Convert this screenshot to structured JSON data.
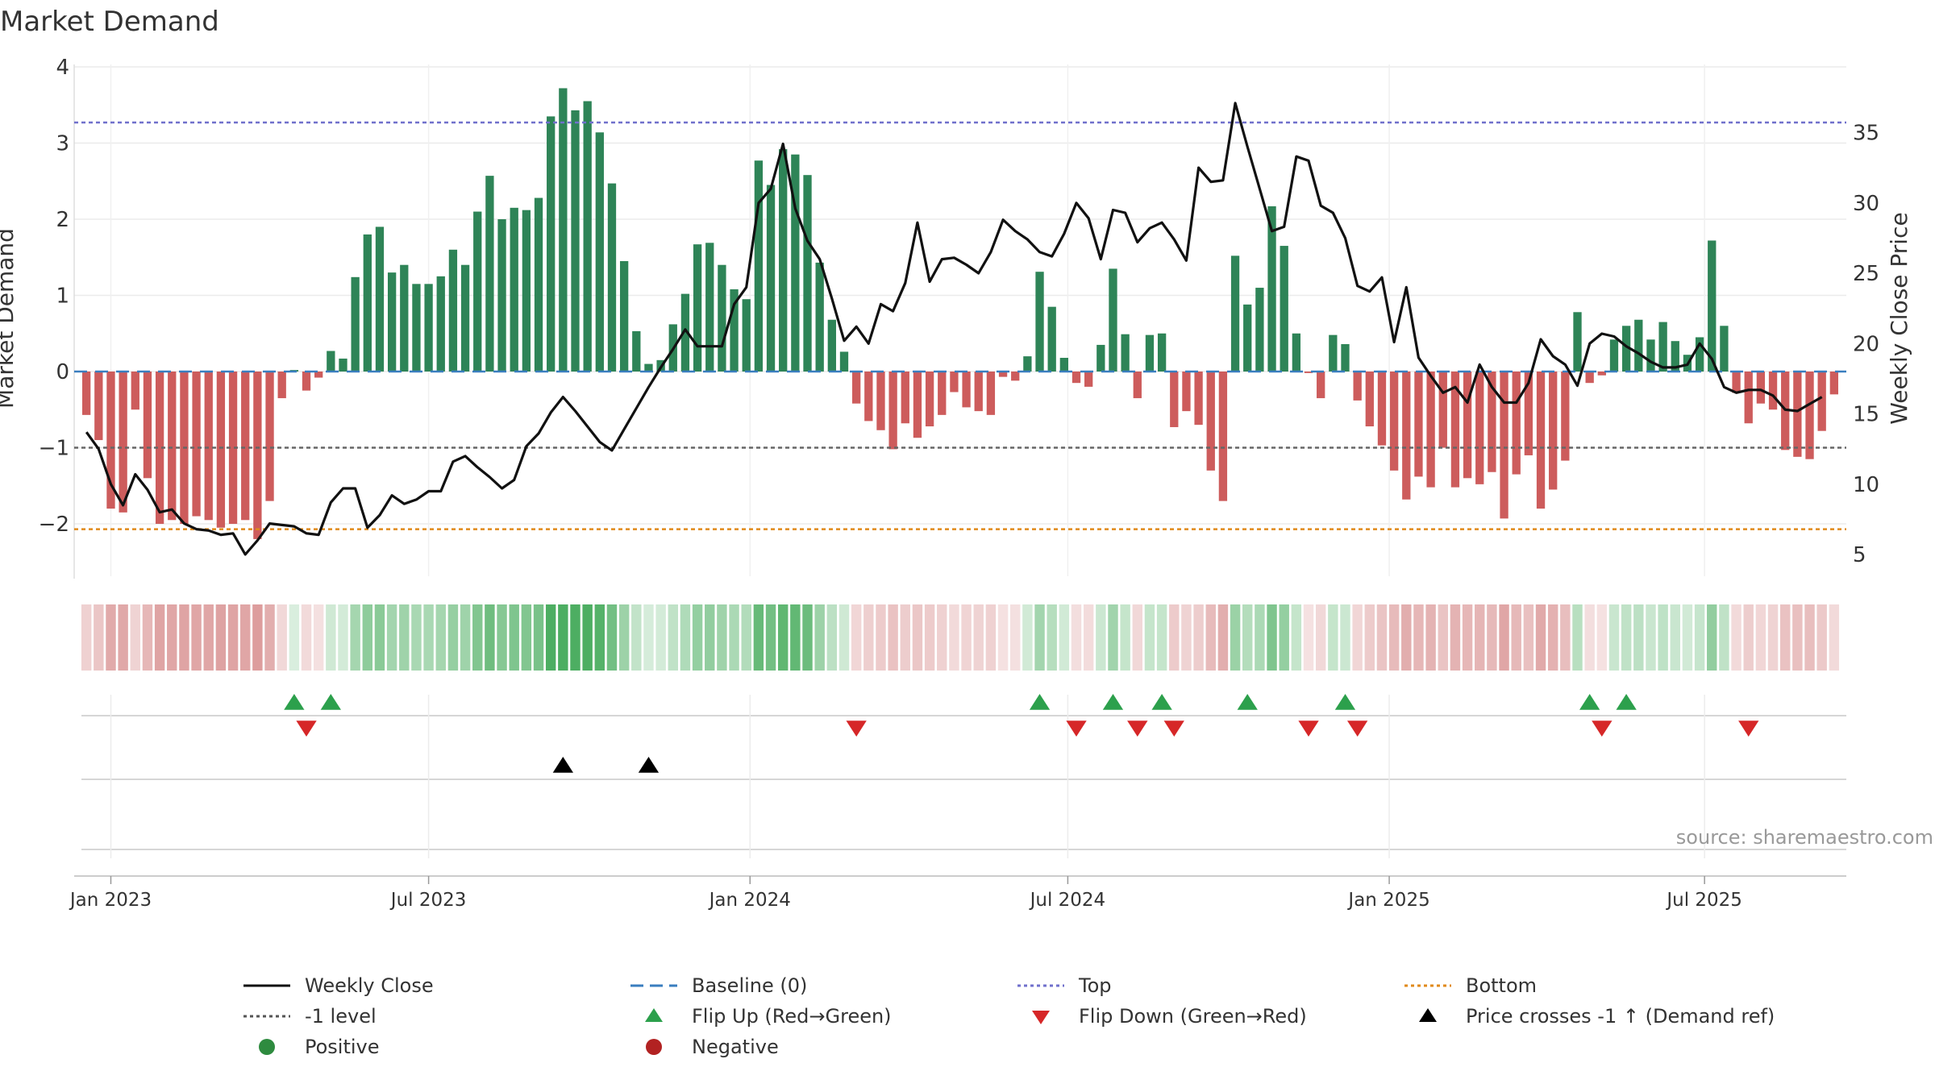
{
  "chart_data": {
    "type": "bar",
    "title": "Market Demand",
    "ylabel": "Market Demand",
    "y2label": "Weekly Close Price",
    "ylim": [
      -2.7,
      4.0
    ],
    "y2lim": [
      3.5,
      39.0
    ],
    "yticks": [
      4,
      3,
      2,
      1,
      0,
      -1,
      -2
    ],
    "yticklabels": [
      "4",
      "3",
      "2",
      "1",
      "0",
      "−1",
      "−2"
    ],
    "y2ticks": [
      35,
      30,
      25,
      20,
      15,
      10,
      5
    ],
    "x_start_month": "2023-01",
    "x_range_weeks": [
      -1,
      144
    ],
    "xticks": [
      {
        "label": "Jan 2023",
        "week": 2.0
      },
      {
        "label": "Jul 2023",
        "week": 28.0
      },
      {
        "label": "Jan 2024",
        "week": 54.3
      },
      {
        "label": "Jul 2024",
        "week": 80.3
      },
      {
        "label": "Jan 2025",
        "week": 106.6
      },
      {
        "label": "Jul 2025",
        "week": 132.4
      }
    ],
    "reference_lines": {
      "top": 3.27,
      "bottom": -2.07,
      "minus_one": -1,
      "baseline": 0
    },
    "demand": [
      -0.57,
      -0.9,
      -1.8,
      -1.85,
      -0.5,
      -1.4,
      -2.0,
      -1.95,
      -2.0,
      -1.9,
      -1.95,
      -2.05,
      -2.0,
      -1.95,
      -2.2,
      -1.7,
      -0.35,
      0.02,
      -0.25,
      -0.08,
      0.27,
      0.17,
      1.24,
      1.8,
      1.9,
      1.3,
      1.4,
      1.15,
      1.15,
      1.25,
      1.6,
      1.4,
      2.1,
      2.57,
      2.0,
      2.15,
      2.12,
      2.28,
      3.35,
      3.72,
      3.43,
      3.55,
      3.14,
      2.47,
      1.45,
      0.53,
      0.1,
      0.15,
      0.62,
      1.02,
      1.67,
      1.69,
      1.4,
      1.08,
      0.95,
      2.77,
      2.45,
      2.92,
      2.85,
      2.58,
      1.43,
      0.68,
      0.26,
      -0.42,
      -0.65,
      -0.77,
      -1.02,
      -0.68,
      -0.87,
      -0.72,
      -0.57,
      -0.27,
      -0.47,
      -0.52,
      -0.57,
      -0.07,
      -0.12,
      0.2,
      1.31,
      0.85,
      0.18,
      -0.15,
      -0.2,
      0.35,
      1.35,
      0.49,
      -0.35,
      0.48,
      0.5,
      -0.73,
      -0.52,
      -0.7,
      -1.3,
      -1.7,
      1.52,
      0.88,
      1.1,
      2.17,
      1.65,
      0.5,
      -0.02,
      -0.35,
      0.48,
      0.36,
      -0.38,
      -0.72,
      -0.97,
      -1.3,
      -1.68,
      -1.38,
      -1.52,
      -1.0,
      -1.52,
      -1.4,
      -1.48,
      -1.32,
      -1.93,
      -1.35,
      -1.1,
      -1.8,
      -1.55,
      -1.17,
      0.78,
      -0.15,
      -0.05,
      0.42,
      0.6,
      0.68,
      0.42,
      0.65,
      0.4,
      0.22,
      0.45,
      1.72,
      0.6,
      -0.28,
      -0.68,
      -0.42,
      -0.5,
      -1.03,
      -1.12,
      -1.15,
      -0.78,
      -0.3
    ],
    "price": [
      13.7,
      12.5,
      10.0,
      8.5,
      10.7,
      9.6,
      8.0,
      8.2,
      7.2,
      6.8,
      6.7,
      6.4,
      6.5,
      5.0,
      6.0,
      7.2,
      7.1,
      7.0,
      6.5,
      6.4,
      8.7,
      9.7,
      9.7,
      6.9,
      7.8,
      9.2,
      8.6,
      8.9,
      9.5,
      9.5,
      11.6,
      12.0,
      11.2,
      10.5,
      9.7,
      10.3,
      12.7,
      13.6,
      15.1,
      16.2,
      15.2,
      14.1,
      13.0,
      12.4,
      13.9,
      15.4,
      16.9,
      18.3,
      19.6,
      21.0,
      19.8,
      19.8,
      19.8,
      22.8,
      24.0,
      30.0,
      31.0,
      34.2,
      29.6,
      27.3,
      26.0,
      23.2,
      20.2,
      21.2,
      20.0,
      22.8,
      22.3,
      24.3,
      28.6,
      24.4,
      26.0,
      26.1,
      25.6,
      25.0,
      26.5,
      28.8,
      28.0,
      27.4,
      26.5,
      26.2,
      27.8,
      30.0,
      28.9,
      26.0,
      29.5,
      29.3,
      27.2,
      28.2,
      28.6,
      27.4,
      25.9,
      32.5,
      31.5,
      31.6,
      37.1,
      34.0,
      31.0,
      28.0,
      28.3,
      33.3,
      33.0,
      29.8,
      29.3,
      27.5,
      24.1,
      23.7,
      24.7,
      20.1,
      24.0,
      19.0,
      17.7,
      16.5,
      16.9,
      15.8,
      18.5,
      16.9,
      15.8,
      15.8,
      17.2,
      20.3,
      19.1,
      18.5,
      17.0,
      20.0,
      20.7,
      20.5,
      19.8,
      19.3,
      18.7,
      18.3,
      18.3,
      18.5,
      20.0,
      18.9,
      16.9,
      16.5,
      16.7,
      16.7,
      16.3,
      15.3,
      15.2,
      15.7,
      16.2
    ],
    "flip_up_weeks": [
      17,
      20,
      78,
      84,
      88,
      95,
      103,
      123,
      126
    ],
    "flip_down_weeks": [
      18,
      63,
      81,
      86,
      89,
      100,
      104,
      124,
      136
    ],
    "price_cross_weeks": [
      39,
      46
    ],
    "source": "source: sharemaestro.com",
    "legend": [
      {
        "label": "Weekly Close",
        "symbol": "line-solid",
        "color": "#111111"
      },
      {
        "label": "Baseline (0)",
        "symbol": "line-dash",
        "color": "#3a7ebf"
      },
      {
        "label": "Top",
        "symbol": "line-dot",
        "color": "#7070cc"
      },
      {
        "label": "Bottom",
        "symbol": "line-dot",
        "color": "#e08a1a"
      },
      {
        "label": "-1 level",
        "symbol": "line-dot",
        "color": "#555555"
      },
      {
        "label": "Flip Up (Red→Green)",
        "symbol": "triangle-up",
        "color": "#2ca04c"
      },
      {
        "label": "Flip Down (Green→Red)",
        "symbol": "triangle-down",
        "color": "#d62728"
      },
      {
        "label": "Price crosses -1 ↑ (Demand ref)",
        "symbol": "triangle-up",
        "color": "#000000"
      },
      {
        "label": "Positive",
        "symbol": "circle",
        "color": "#2e8b3f"
      },
      {
        "label": "Negative",
        "symbol": "circle",
        "color": "#b22222"
      }
    ],
    "colors": {
      "positive": "#2e8457",
      "negative": "#cd5c5c",
      "price": "#111111"
    }
  }
}
